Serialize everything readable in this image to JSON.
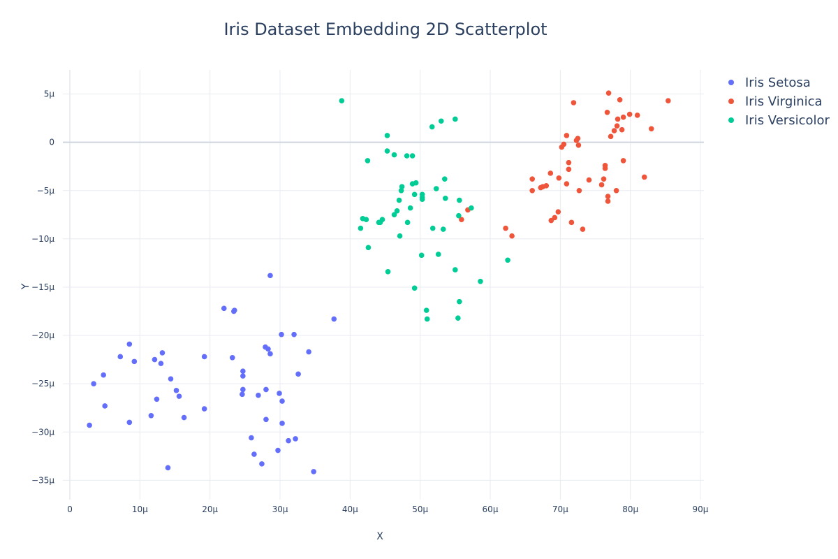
{
  "chart_data": {
    "type": "scatter",
    "title": "Iris Dataset Embedding 2D Scatterplot",
    "xlabel": "X",
    "ylabel": "Y",
    "unit_suffix": "μ",
    "xlim": [
      -1,
      90.5
    ],
    "ylim": [
      -37,
      7.5
    ],
    "xticks": [
      0,
      10,
      20,
      30,
      40,
      50,
      60,
      70,
      80,
      90
    ],
    "yticks": [
      5,
      0,
      -5,
      -10,
      -15,
      -20,
      -25,
      -30,
      -35
    ],
    "xtick_labels": [
      "0",
      "10μ",
      "20μ",
      "30μ",
      "40μ",
      "50μ",
      "60μ",
      "70μ",
      "80μ",
      "90μ"
    ],
    "ytick_labels": [
      "5μ",
      "0",
      "−5μ",
      "−10μ",
      "−15μ",
      "−20μ",
      "−25μ",
      "−30μ",
      "−35μ"
    ],
    "grid": true,
    "legend_position": "top-right",
    "series": [
      {
        "name": "Iris Setosa",
        "color": "#636efa",
        "points": [
          [
            2.8,
            -29.3
          ],
          [
            3.4,
            -25.0
          ],
          [
            4.8,
            -24.1
          ],
          [
            5.0,
            -27.3
          ],
          [
            7.2,
            -22.2
          ],
          [
            8.5,
            -20.9
          ],
          [
            8.5,
            -29.0
          ],
          [
            9.2,
            -22.7
          ],
          [
            11.6,
            -28.3
          ],
          [
            12.1,
            -22.5
          ],
          [
            12.4,
            -26.6
          ],
          [
            13.0,
            -22.9
          ],
          [
            13.2,
            -21.8
          ],
          [
            14.0,
            -33.7
          ],
          [
            14.4,
            -24.5
          ],
          [
            15.2,
            -25.7
          ],
          [
            15.6,
            -26.3
          ],
          [
            16.3,
            -28.5
          ],
          [
            19.2,
            -22.2
          ],
          [
            19.2,
            -27.6
          ],
          [
            22.0,
            -17.2
          ],
          [
            23.2,
            -22.3
          ],
          [
            23.4,
            -17.5
          ],
          [
            23.5,
            -17.4
          ],
          [
            24.7,
            -23.7
          ],
          [
            24.7,
            -24.2
          ],
          [
            24.7,
            -25.6
          ],
          [
            24.6,
            -26.1
          ],
          [
            25.9,
            -30.6
          ],
          [
            26.3,
            -32.3
          ],
          [
            26.9,
            -26.2
          ],
          [
            27.4,
            -33.3
          ],
          [
            27.9,
            -21.2
          ],
          [
            28.0,
            -25.6
          ],
          [
            28.0,
            -28.7
          ],
          [
            28.3,
            -21.4
          ],
          [
            28.6,
            -21.9
          ],
          [
            28.6,
            -13.8
          ],
          [
            29.7,
            -31.9
          ],
          [
            29.9,
            -26.0
          ],
          [
            30.2,
            -19.9
          ],
          [
            30.3,
            -26.8
          ],
          [
            30.3,
            -29.1
          ],
          [
            31.2,
            -30.9
          ],
          [
            32.0,
            -19.9
          ],
          [
            32.2,
            -30.7
          ],
          [
            32.6,
            -24.0
          ],
          [
            34.1,
            -21.7
          ],
          [
            34.8,
            -34.1
          ],
          [
            37.7,
            -18.3
          ]
        ]
      },
      {
        "name": "Iris Virginica",
        "color": "#ef553b",
        "points": [
          [
            55.9,
            -8.0
          ],
          [
            56.8,
            -7.0
          ],
          [
            62.2,
            -8.9
          ],
          [
            63.1,
            -9.7
          ],
          [
            66.0,
            -3.8
          ],
          [
            66.0,
            -5.0
          ],
          [
            67.2,
            -4.7
          ],
          [
            67.5,
            -4.6
          ],
          [
            68.0,
            -4.5
          ],
          [
            68.6,
            -3.2
          ],
          [
            68.7,
            -8.1
          ],
          [
            69.2,
            -7.8
          ],
          [
            69.7,
            -7.2
          ],
          [
            69.8,
            -3.7
          ],
          [
            70.2,
            -0.5
          ],
          [
            70.5,
            -0.2
          ],
          [
            70.9,
            0.7
          ],
          [
            70.9,
            -4.3
          ],
          [
            71.2,
            -2.1
          ],
          [
            71.2,
            -2.8
          ],
          [
            71.6,
            -8.3
          ],
          [
            71.9,
            4.1
          ],
          [
            72.3,
            0.2
          ],
          [
            72.5,
            0.4
          ],
          [
            72.6,
            -0.3
          ],
          [
            72.7,
            -5.0
          ],
          [
            73.2,
            -9.0
          ],
          [
            74.1,
            -3.9
          ],
          [
            75.9,
            -4.4
          ],
          [
            76.2,
            -3.8
          ],
          [
            76.4,
            -2.4
          ],
          [
            76.4,
            -2.7
          ],
          [
            76.7,
            3.1
          ],
          [
            76.8,
            -5.6
          ],
          [
            76.8,
            -6.1
          ],
          [
            76.9,
            5.1
          ],
          [
            77.2,
            0.6
          ],
          [
            77.7,
            1.2
          ],
          [
            78.0,
            -5.0
          ],
          [
            78.1,
            1.7
          ],
          [
            78.2,
            2.4
          ],
          [
            78.5,
            4.4
          ],
          [
            78.8,
            1.3
          ],
          [
            79.0,
            -1.9
          ],
          [
            79.0,
            2.6
          ],
          [
            79.9,
            2.9
          ],
          [
            81.0,
            2.8
          ],
          [
            82.0,
            -3.6
          ],
          [
            83.0,
            1.4
          ],
          [
            85.4,
            4.3
          ]
        ]
      },
      {
        "name": "Iris Versicolor",
        "color": "#00cc96",
        "points": [
          [
            38.8,
            4.3
          ],
          [
            41.5,
            -8.9
          ],
          [
            41.8,
            -7.9
          ],
          [
            42.3,
            -8.0
          ],
          [
            42.5,
            -1.9
          ],
          [
            42.6,
            -10.9
          ],
          [
            44.1,
            -8.3
          ],
          [
            44.3,
            -8.3
          ],
          [
            44.6,
            -8.0
          ],
          [
            45.3,
            0.7
          ],
          [
            45.3,
            -0.9
          ],
          [
            45.4,
            -13.4
          ],
          [
            46.3,
            -1.3
          ],
          [
            46.3,
            -7.5
          ],
          [
            46.7,
            -7.1
          ],
          [
            47.0,
            -6.0
          ],
          [
            47.1,
            -9.7
          ],
          [
            47.3,
            -5.0
          ],
          [
            47.4,
            -4.6
          ],
          [
            48.1,
            -1.4
          ],
          [
            48.2,
            -8.3
          ],
          [
            48.6,
            -6.8
          ],
          [
            48.9,
            -1.4
          ],
          [
            48.9,
            -4.3
          ],
          [
            49.2,
            -5.4
          ],
          [
            49.2,
            -15.1
          ],
          [
            49.4,
            -4.2
          ],
          [
            50.2,
            -11.7
          ],
          [
            50.3,
            -5.4
          ],
          [
            50.3,
            -5.7
          ],
          [
            50.3,
            -5.9
          ],
          [
            50.9,
            -17.4
          ],
          [
            51.0,
            -18.3
          ],
          [
            51.7,
            1.6
          ],
          [
            51.8,
            -8.9
          ],
          [
            52.3,
            -4.8
          ],
          [
            52.6,
            -11.6
          ],
          [
            53.0,
            2.2
          ],
          [
            53.3,
            -9.0
          ],
          [
            53.5,
            -3.8
          ],
          [
            53.6,
            -5.8
          ],
          [
            55.0,
            2.4
          ],
          [
            55.0,
            -13.2
          ],
          [
            55.4,
            -18.2
          ],
          [
            55.5,
            -7.6
          ],
          [
            55.6,
            -6.0
          ],
          [
            55.6,
            -16.5
          ],
          [
            57.3,
            -6.8
          ],
          [
            58.6,
            -14.4
          ],
          [
            62.5,
            -12.2
          ]
        ]
      }
    ]
  }
}
